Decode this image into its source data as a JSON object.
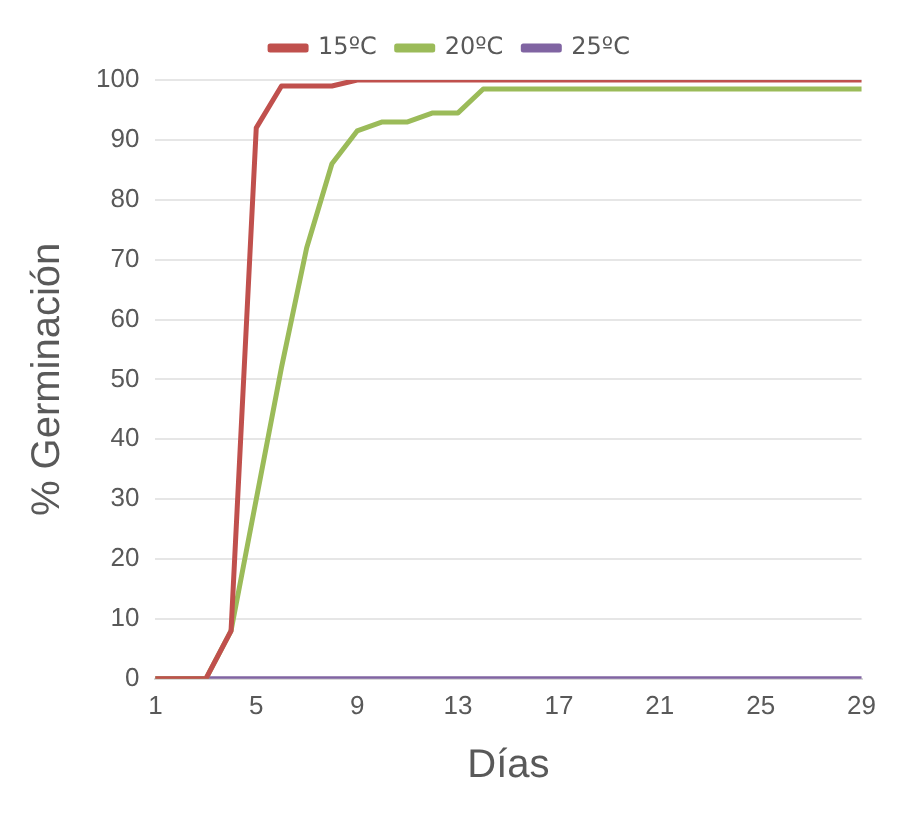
{
  "chart_data": {
    "type": "line",
    "xlabel": "Días",
    "ylabel": "% Germinación",
    "categories": [
      "1",
      null,
      null,
      null,
      "5",
      null,
      null,
      null,
      "9",
      null,
      null,
      null,
      "13",
      null,
      null,
      null,
      "17",
      null,
      null,
      null,
      "21",
      null,
      null,
      null,
      "25",
      null,
      null,
      null,
      "29"
    ],
    "series": [
      {
        "name": "15ºC",
        "color": "#c0504d",
        "values": [
          0,
          0,
          0,
          8,
          92,
          99,
          99,
          99,
          100,
          100,
          100,
          100,
          100,
          100,
          100,
          100,
          100,
          100,
          100,
          100,
          100,
          100,
          100,
          100,
          100,
          100,
          100,
          100,
          100
        ]
      },
      {
        "name": "20ºC",
        "color": "#9bbb59",
        "values": [
          0,
          0,
          0,
          8,
          30,
          52,
          72,
          86,
          91.5,
          93,
          93,
          94.5,
          94.5,
          98.5,
          98.5,
          98.5,
          98.5,
          98.5,
          98.5,
          98.5,
          98.5,
          98.5,
          98.5,
          98.5,
          98.5,
          98.5,
          98.5,
          98.5,
          98.5
        ]
      },
      {
        "name": "25ºC",
        "color": "#8064a2",
        "values": [
          0,
          0,
          0,
          0,
          0,
          0,
          0,
          0,
          0,
          0,
          0,
          0,
          0,
          0,
          0,
          0,
          0,
          0,
          0,
          0,
          0,
          0,
          0,
          0,
          0,
          0,
          0,
          0,
          0
        ]
      }
    ],
    "ylim": [
      0,
      100
    ],
    "yticks": [
      0,
      10,
      20,
      30,
      40,
      50,
      60,
      70,
      80,
      90,
      100
    ],
    "grid": "y",
    "legend": "top",
    "marker": "none",
    "line_style": "solid"
  }
}
